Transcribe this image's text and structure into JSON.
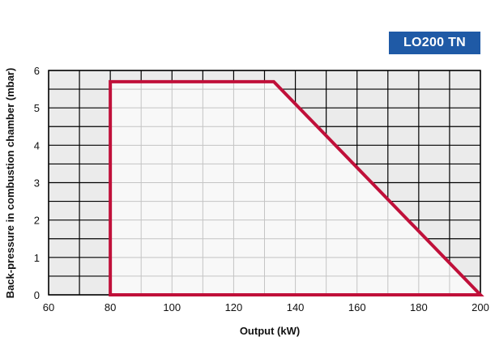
{
  "badge": {
    "label": "LO200 TN"
  },
  "colors": {
    "outside": "#ebebeb",
    "inside": "#f8f8f8",
    "grid_outside": "#000000",
    "grid_inside": "#c4c4c4",
    "envelope": "#c0103a",
    "badge": "#1f5aa6"
  },
  "chart_data": {
    "type": "area",
    "title": "",
    "xlabel": "Output (kW)",
    "ylabel": "Back-pressure in combustion chamber (mbar)",
    "xlim": [
      60,
      200
    ],
    "ylim": [
      0,
      6
    ],
    "grid": true,
    "x_ticks": [
      60,
      80,
      100,
      120,
      140,
      160,
      180,
      200
    ],
    "y_ticks": [
      0,
      1,
      2,
      3,
      4,
      5,
      6
    ],
    "x_minor_step": 10,
    "y_minor_step": 0.5,
    "series": [
      {
        "x": [
          80,
          80,
          133,
          200,
          80
        ],
        "y": [
          0,
          5.7,
          5.7,
          0,
          0
        ]
      }
    ]
  }
}
